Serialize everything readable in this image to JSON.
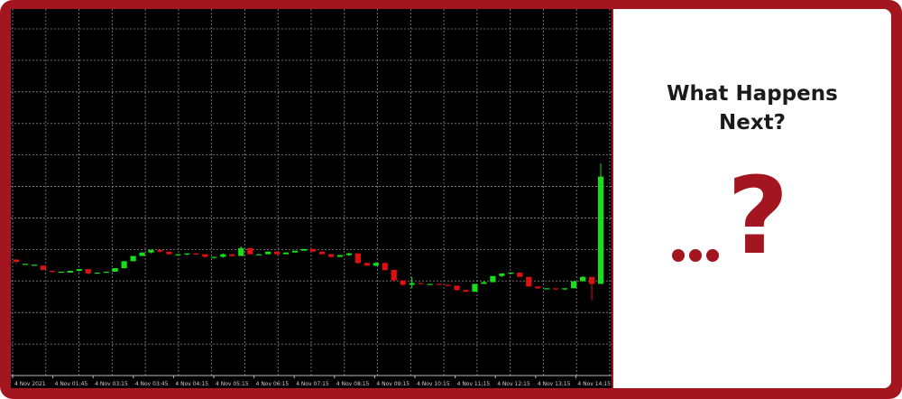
{
  "chart_data": {
    "type": "candlestick",
    "theme": {
      "background": "#000000",
      "grid": "#8a8a8a",
      "up_color": "#18e018",
      "down_color": "#e01010"
    },
    "grid": true,
    "x_tick_labels": [
      "4 Nov 2021",
      "4 Nov 01:45",
      "4 Nov 03:15",
      "4 Nov 03:45",
      "4 Nov 04:15",
      "4 Nov 05:15",
      "4 Nov 06:15",
      "4 Nov 07:15",
      "4 Nov 08:15",
      "4 Nov 09:15",
      "4 Nov 10:15",
      "4 Nov 11:15",
      "4 Nov 12:15",
      "4 Nov 13:15",
      "4 Nov 14:15"
    ],
    "ylim": [
      0,
      420
    ],
    "candles": [
      [
        133,
        130,
        129,
        128
      ],
      [
        128,
        128,
        128,
        127
      ],
      [
        127,
        127,
        127,
        126
      ],
      [
        126,
        121,
        120,
        120
      ],
      [
        120,
        119,
        119,
        118
      ],
      [
        119,
        119,
        119,
        118
      ],
      [
        118,
        120,
        120,
        118
      ],
      [
        120,
        122,
        122,
        119
      ],
      [
        122,
        117,
        117,
        116
      ],
      [
        117,
        118,
        118,
        117
      ],
      [
        118,
        119,
        119,
        118
      ],
      [
        119,
        123,
        123,
        119
      ],
      [
        123,
        131,
        131,
        123
      ],
      [
        131,
        137,
        137,
        131
      ],
      [
        137,
        141,
        141,
        137
      ],
      [
        141,
        144,
        144,
        140
      ],
      [
        144,
        142,
        144,
        141
      ],
      [
        142,
        139,
        142,
        139
      ],
      [
        139,
        139,
        139,
        138
      ],
      [
        139,
        140,
        140,
        138
      ],
      [
        140,
        139,
        140,
        138
      ],
      [
        139,
        136,
        139,
        135
      ],
      [
        136,
        136,
        136,
        134
      ],
      [
        136,
        139,
        140,
        135
      ],
      [
        139,
        137,
        139,
        136
      ],
      [
        137,
        146,
        148,
        137
      ],
      [
        146,
        139,
        146,
        139
      ],
      [
        139,
        139,
        139,
        138
      ],
      [
        139,
        142,
        142,
        139
      ],
      [
        142,
        139,
        142,
        138
      ],
      [
        139,
        141,
        141,
        139
      ],
      [
        141,
        143,
        143,
        141
      ],
      [
        143,
        145,
        145,
        143
      ],
      [
        145,
        142,
        145,
        142
      ],
      [
        142,
        139,
        142,
        139
      ],
      [
        139,
        136,
        139,
        135
      ],
      [
        136,
        138,
        138,
        136
      ],
      [
        138,
        140,
        141,
        137
      ],
      [
        140,
        129,
        140,
        128
      ],
      [
        129,
        126,
        129,
        126
      ],
      [
        126,
        129,
        130,
        125
      ],
      [
        129,
        121,
        129,
        120
      ],
      [
        121,
        109,
        121,
        109
      ],
      [
        109,
        104,
        109,
        103
      ],
      [
        104,
        106,
        113,
        100
      ],
      [
        106,
        105,
        106,
        105
      ],
      [
        105,
        105,
        105,
        104
      ],
      [
        105,
        104,
        105,
        104
      ],
      [
        104,
        103,
        104,
        103
      ],
      [
        103,
        98,
        103,
        97
      ],
      [
        98,
        96,
        98,
        96
      ],
      [
        96,
        105,
        105,
        96
      ],
      [
        105,
        107,
        108,
        105
      ],
      [
        107,
        114,
        114,
        107
      ],
      [
        114,
        117,
        117,
        113
      ],
      [
        117,
        118,
        118,
        116
      ],
      [
        118,
        113,
        118,
        113
      ],
      [
        113,
        102,
        113,
        102
      ],
      [
        102,
        100,
        102,
        99
      ],
      [
        100,
        100,
        100,
        99
      ],
      [
        100,
        99,
        100,
        98
      ],
      [
        99,
        100,
        100,
        98
      ],
      [
        100,
        108,
        108,
        100
      ],
      [
        108,
        113,
        114,
        108
      ],
      [
        113,
        105,
        113,
        86
      ],
      [
        105,
        228,
        243,
        105
      ]
    ]
  },
  "headline": {
    "line1": "What Happens",
    "line2": "Next?"
  },
  "question_mark": "?"
}
